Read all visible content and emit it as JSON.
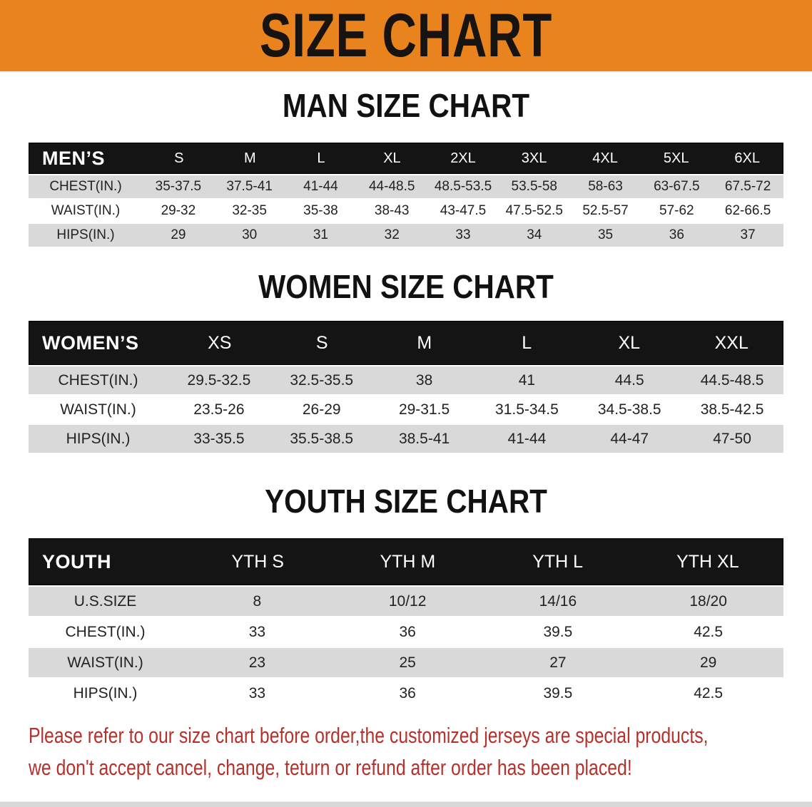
{
  "banner": {
    "title": "SIZE CHART",
    "bg_color": "#E8831E",
    "text_color": "#161310"
  },
  "colors": {
    "table_header_black": "#141414",
    "row_gray": "#D9D9D9",
    "row_white": "#FEFEFE",
    "disclaimer_red": "#B5312B"
  },
  "sections": [
    {
      "title": "MAN SIZE CHART",
      "table": {
        "header_label": "MEN’S",
        "columns": [
          "S",
          "M",
          "L",
          "XL",
          "2XL",
          "3XL",
          "4XL",
          "5XL",
          "6XL"
        ],
        "rows": [
          {
            "label": "CHEST(IN.)",
            "values": [
              "35-37.5",
              "37.5-41",
              "41-44",
              "44-48.5",
              "48.5-53.5",
              "53.5-58",
              "58-63",
              "63-67.5",
              "67.5-72"
            ]
          },
          {
            "label": "WAIST(IN.)",
            "values": [
              "29-32",
              "32-35",
              "35-38",
              "38-43",
              "43-47.5",
              "47.5-52.5",
              "52.5-57",
              "57-62",
              "62-66.5"
            ]
          },
          {
            "label": "HIPS(IN.)",
            "values": [
              "29",
              "30",
              "31",
              "32",
              "33",
              "34",
              "35",
              "36",
              "37"
            ]
          }
        ]
      }
    },
    {
      "title": "WOMEN SIZE CHART",
      "table": {
        "header_label": "WOMEN’S",
        "columns": [
          "XS",
          "S",
          "M",
          "L",
          "XL",
          "XXL"
        ],
        "rows": [
          {
            "label": "CHEST(IN.)",
            "values": [
              "29.5-32.5",
              "32.5-35.5",
              "38",
              "41",
              "44.5",
              "44.5-48.5"
            ]
          },
          {
            "label": "WAIST(IN.)",
            "values": [
              "23.5-26",
              "26-29",
              "29-31.5",
              "31.5-34.5",
              "34.5-38.5",
              "38.5-42.5"
            ]
          },
          {
            "label": "HIPS(IN.)",
            "values": [
              "33-35.5",
              "35.5-38.5",
              "38.5-41",
              "41-44",
              "44-47",
              "47-50"
            ]
          }
        ]
      }
    },
    {
      "title": "YOUTH SIZE CHART",
      "table": {
        "header_label": "YOUTH",
        "columns": [
          "YTH S",
          "YTH M",
          "YTH L",
          "YTH XL"
        ],
        "rows": [
          {
            "label": "U.S.SIZE",
            "values": [
              "8",
              "10/12",
              "14/16",
              "18/20"
            ]
          },
          {
            "label": "CHEST(IN.)",
            "values": [
              "33",
              "36",
              "39.5",
              "42.5"
            ]
          },
          {
            "label": "WAIST(IN.)",
            "values": [
              "23",
              "25",
              "27",
              "29"
            ]
          },
          {
            "label": "HIPS(IN.)",
            "values": [
              "33",
              "36",
              "39.5",
              "42.5"
            ]
          }
        ]
      }
    }
  ],
  "disclaimer": {
    "line1": "Please refer to our size chart before order,the customized jerseys are special products,",
    "line2": "we don't accept cancel, change, teturn or refund after order has been placed!"
  }
}
